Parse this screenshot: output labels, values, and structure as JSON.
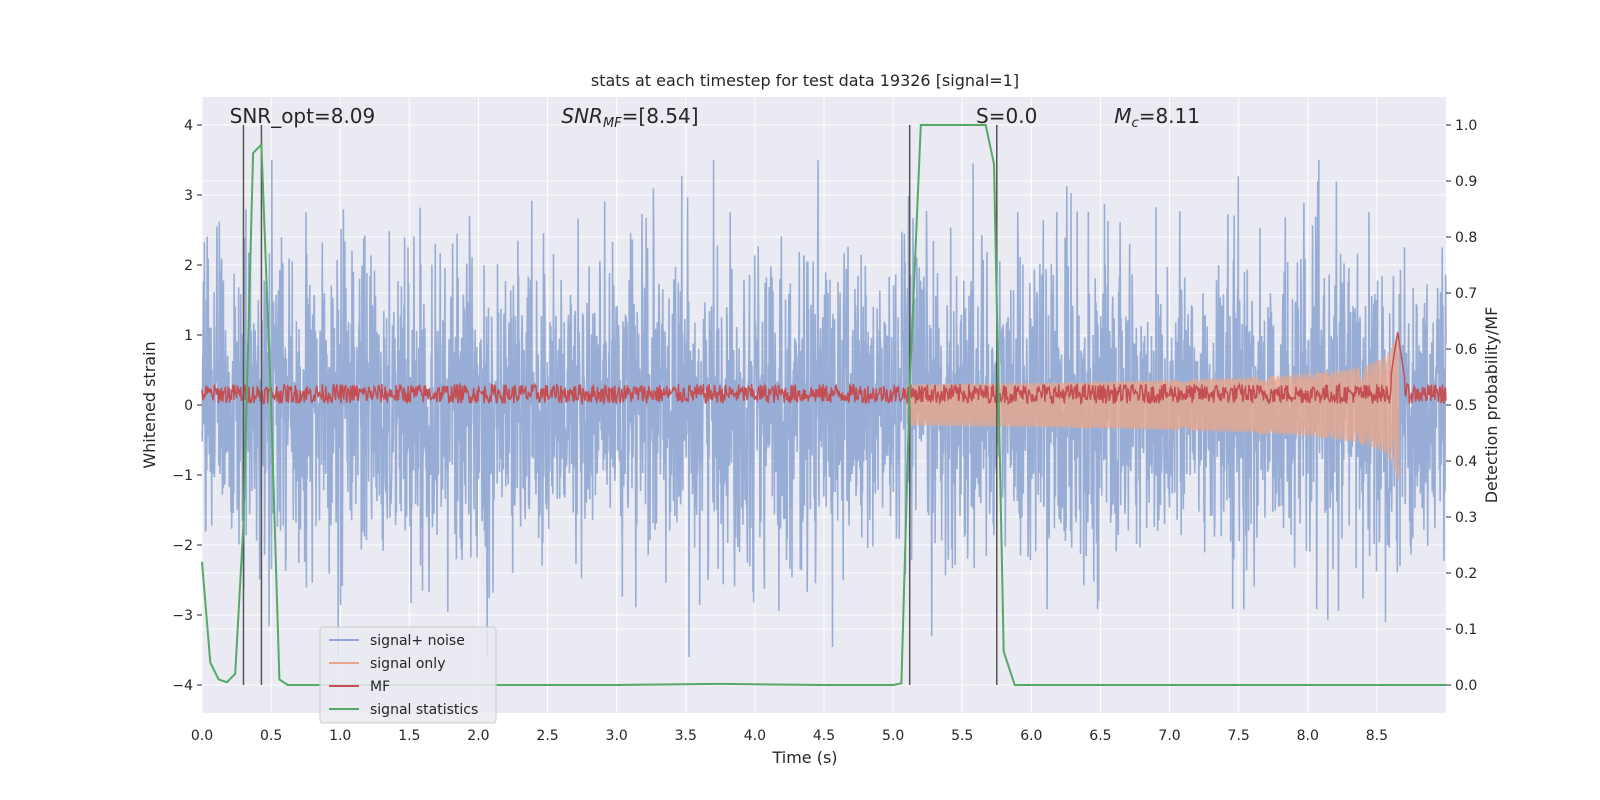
{
  "chart_data": {
    "type": "line",
    "title": "stats at each timestep for test data 19326 [signal=1]",
    "xlabel": "Time (s)",
    "ylabel": "Whitened strain",
    "y2label": "Detection probability/MF",
    "xlim": [
      0.0,
      9.0
    ],
    "ylim": [
      -4.4,
      4.4
    ],
    "y2lim": [
      -0.05,
      1.05
    ],
    "xticks": [
      0.0,
      0.5,
      1.0,
      1.5,
      2.0,
      2.5,
      3.0,
      3.5,
      4.0,
      4.5,
      5.0,
      5.5,
      6.0,
      6.5,
      7.0,
      7.5,
      8.0,
      8.5
    ],
    "xtick_labels": [
      "0.0",
      "0.5",
      "1.0",
      "1.5",
      "2.0",
      "2.5",
      "3.0",
      "3.5",
      "4.0",
      "4.5",
      "5.0",
      "5.5",
      "6.0",
      "6.5",
      "7.0",
      "7.5",
      "8.0",
      "8.5"
    ],
    "yticks": [
      -4,
      -3,
      -2,
      -1,
      0,
      1,
      2,
      3,
      4
    ],
    "ytick_labels": [
      "−4",
      "−3",
      "−2",
      "−1",
      "0",
      "1",
      "2",
      "3",
      "4"
    ],
    "y2ticks": [
      0.0,
      0.1,
      0.2,
      0.3,
      0.4,
      0.5,
      0.6,
      0.7,
      0.8,
      0.9,
      1.0
    ],
    "y2tick_labels": [
      "0.0",
      "0.1",
      "0.2",
      "0.3",
      "0.4",
      "0.5",
      "0.6",
      "0.7",
      "0.8",
      "0.9",
      "1.0"
    ],
    "grid": true,
    "legend": {
      "location": "lower-left",
      "entries": [
        {
          "label": "signal+ noise",
          "color": "#8fa6d2"
        },
        {
          "label": "signal only",
          "color": "#e8a88c"
        },
        {
          "label": "MF",
          "color": "#c44e52"
        },
        {
          "label": "signal statistics",
          "color": "#55a868"
        }
      ]
    },
    "annotations": [
      {
        "text": "SNR_opt=8.09",
        "x": 0.2
      },
      {
        "text": "SNR",
        "sub": "MF",
        "rest": "=[8.54]",
        "x": 2.6
      },
      {
        "text": "S=0.0",
        "x": 5.6
      },
      {
        "text": "M",
        "sub": "c",
        "rest": "=8.11",
        "x": 6.6
      }
    ],
    "vlines": [
      0.3,
      0.43,
      5.12,
      5.75
    ],
    "noise": {
      "name": "signal+ noise",
      "approx_range": [
        -3.6,
        3.5
      ],
      "peaks": [
        3.45,
        -3.6
      ]
    },
    "signal_only": {
      "name": "signal only",
      "start": 5.1,
      "end": 8.66,
      "peak_amplitude": 1.3
    },
    "mf": {
      "name": "MF",
      "baseline": 0.52,
      "peak_x": 8.65,
      "peak_value": 0.63
    },
    "signal_statistics": {
      "name": "signal statistics",
      "axis": "y2",
      "x": [
        0.0,
        0.06,
        0.12,
        0.18,
        0.24,
        0.3,
        0.37,
        0.43,
        0.5,
        0.56,
        0.62,
        1.5,
        3.0,
        3.75,
        4.5,
        5.0,
        5.06,
        5.12,
        5.2,
        5.5,
        5.67,
        5.73,
        5.8,
        5.88,
        6.2,
        7.5,
        9.0
      ],
      "y": [
        0.22,
        0.04,
        0.01,
        0.005,
        0.02,
        0.29,
        0.95,
        0.965,
        0.5,
        0.01,
        0.0,
        0.0,
        0.0,
        0.002,
        0.0,
        0.0,
        0.003,
        0.53,
        1.0,
        1.0,
        1.0,
        0.93,
        0.06,
        0.0,
        0.0,
        0.0,
        0.0
      ]
    }
  }
}
